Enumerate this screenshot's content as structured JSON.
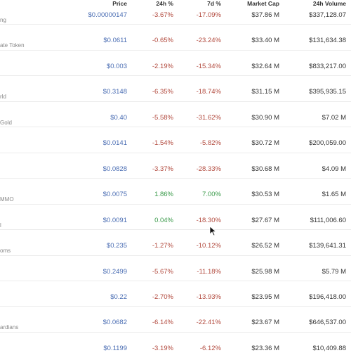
{
  "table": {
    "columns": [
      "Price",
      "24h %",
      "7d %",
      "Market Cap",
      "24h Volume"
    ],
    "rows": [
      {
        "name": "ng",
        "cells": [
          "$0.00000147",
          "-3.67%",
          "-17.09%",
          "$37.86 M",
          "$337,128.07"
        ]
      },
      {
        "name": "ate Token",
        "cells": [
          "$0.0611",
          "-0.65%",
          "-23.24%",
          "$33.40 M",
          "$131,634.38"
        ]
      },
      {
        "cells": [
          "$0.003",
          "-2.19%",
          "-15.34%",
          "$32.64 M",
          "$833,217.00"
        ]
      },
      {
        "name": "rld",
        "cells": [
          "$0.3148",
          "-6.35%",
          "-18.74%",
          "$31.15 M",
          "$395,935.15"
        ]
      },
      {
        "name": "Gold",
        "cells": [
          "$0.40",
          "-5.58%",
          "-31.62%",
          "$30.90 M",
          "$7.02 M"
        ]
      },
      {
        "cells": [
          "$0.0141",
          "-1.54%",
          "-5.82%",
          "$30.72 M",
          "$200,059.00"
        ]
      },
      {
        "cells": [
          "$0.0828",
          "-3.37%",
          "-28.33%",
          "$30.68 M",
          "$4.09 M"
        ]
      },
      {
        "name": "MMO",
        "cells": [
          "$0.0075",
          "1.86%",
          "7.00%",
          "$30.53 M",
          "$1.65 M"
        ]
      },
      {
        "name": "l",
        "cells": [
          "$0.0091",
          "0.04%",
          "-18.30%",
          "$27.67 M",
          "$111,006.60"
        ]
      },
      {
        "name": "oms",
        "cells": [
          "$0.235",
          "-1.27%",
          "-10.12%",
          "$26.52 M",
          "$139,641.31"
        ]
      },
      {
        "cells": [
          "$0.2499",
          "-5.67%",
          "-11.18%",
          "$25.98 M",
          "$5.79 M"
        ]
      },
      {
        "cells": [
          "$0.22",
          "-2.70%",
          "-13.93%",
          "$23.95 M",
          "$196,418.00"
        ]
      },
      {
        "name": "ardians",
        "cells": [
          "$0.0682",
          "-6.14%",
          "-22.41%",
          "$23.67 M",
          "$646,537.00"
        ]
      },
      {
        "cells": [
          "$0.1199",
          "-3.19%",
          "-6.12%",
          "$23.36 M",
          "$10,409.88"
        ]
      }
    ]
  }
}
